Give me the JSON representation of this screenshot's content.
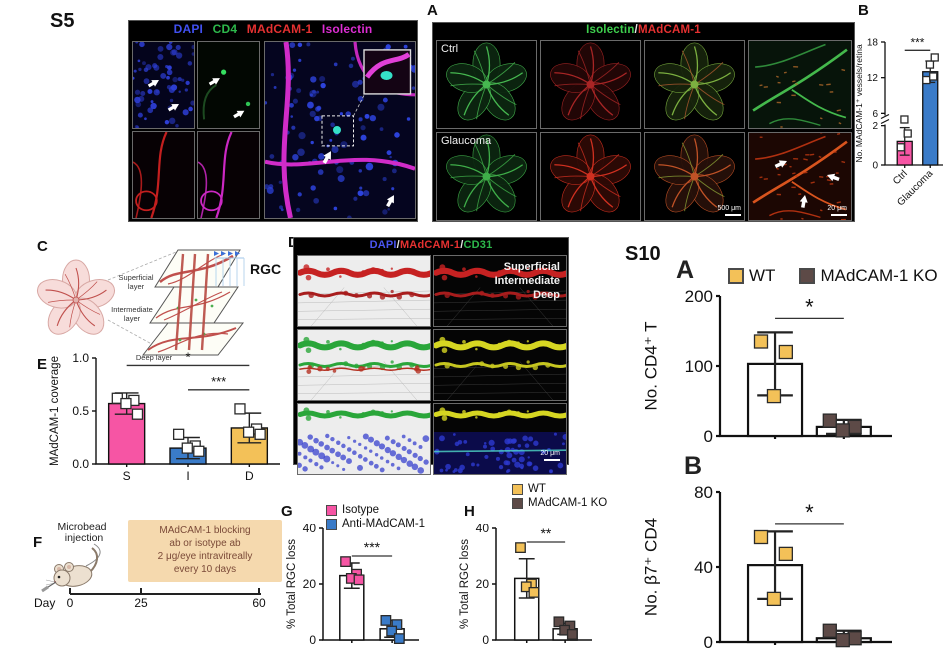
{
  "figure": {
    "s5": {
      "label": "S5",
      "channels": [
        {
          "name": "DAPI",
          "color": "#4150f0"
        },
        {
          "name": "CD4",
          "color": "#2db84b"
        },
        {
          "name": "MAdCAM-1",
          "color": "#e53131"
        },
        {
          "name": "Isolectin",
          "color": "#de2ed4"
        }
      ]
    },
    "a": {
      "label": "A",
      "header": [
        {
          "text": "Isolectin",
          "color": "#3ecf4d"
        },
        {
          "text": "/",
          "color": "#e8e8e8"
        },
        {
          "text": "MAdCAM-1",
          "color": "#e53131"
        }
      ],
      "row1": "Ctrl",
      "row2": "Glaucoma",
      "scale_500": "500 μm",
      "scale_20": "20 μm"
    },
    "b_label": "B",
    "c": {
      "label": "C",
      "rgc": "RGC",
      "layers": [
        {
          "l1": "Superficial",
          "l2": "layer"
        },
        {
          "l1": "Intermediate",
          "l2": "layer"
        },
        {
          "l1": "Deep layer",
          "l2": ""
        }
      ]
    },
    "d": {
      "label": "D",
      "header": [
        {
          "text": "DAPI",
          "color": "#4a55f0"
        },
        {
          "text": "/",
          "color": "#e8e8e8"
        },
        {
          "text": "MAdCAM-1",
          "color": "#e53131"
        },
        {
          "text": "/",
          "color": "#e8e8e8"
        },
        {
          "text": "CD31",
          "color": "#2db84b"
        }
      ],
      "depths": [
        "Superficial",
        "Intermediate",
        "Deep"
      ],
      "scale": "20 μm"
    },
    "e_label": "E",
    "f": {
      "label": "F",
      "inj1": "Microbead",
      "inj2": "injection",
      "box_lines": [
        "MAdCAM-1 blocking",
        "ab or isotype ab",
        "2 μg/eye intravitreally",
        "every 10 days"
      ],
      "day": "Day",
      "t0": "0",
      "t1": "25",
      "t2": "60"
    },
    "g_label": "G",
    "h_label": "H",
    "s10": {
      "label": "S10",
      "a_label": "A",
      "b_label": "B"
    }
  },
  "chart_data": [
    {
      "id": "b",
      "type": "bar",
      "ylabel": "No. MAdCAM-1⁺ vessels/retina",
      "ylim": [
        0,
        18
      ],
      "yticks": [
        0,
        2,
        6,
        12,
        18
      ],
      "axis_break": {
        "low": 2,
        "high": 6,
        "low_frac": 0.32,
        "gap_frac": 0.1
      },
      "categories": [
        "Ctrl",
        "Glaucoma"
      ],
      "values": [
        1.2,
        13
      ],
      "errors": [
        0.7,
        1.8
      ],
      "bar_colors": [
        "#f655a4",
        "#3a7bc8"
      ],
      "points": [
        [
          0.9,
          1.6,
          2.3
        ],
        [
          11.6,
          12.2,
          14.2,
          15.4
        ]
      ],
      "sig": [
        {
          "a": 0,
          "b": 1,
          "label": "***",
          "y": 16.6
        }
      ]
    },
    {
      "id": "e",
      "type": "bar",
      "ylabel": "MAdCAM-1 coverage",
      "ylim": [
        0,
        1.0
      ],
      "yticks": [
        0.0,
        0.5,
        1.0
      ],
      "categories": [
        "S",
        "I",
        "D"
      ],
      "values": [
        0.57,
        0.15,
        0.34
      ],
      "errors": [
        0.1,
        0.1,
        0.14
      ],
      "bar_colors": [
        "#f655a4",
        "#3a7bc8",
        "#f3c158"
      ],
      "points": [
        [
          0.62,
          0.6,
          0.57,
          0.47
        ],
        [
          0.28,
          0.17,
          0.15,
          0.12
        ],
        [
          0.52,
          0.33,
          0.3,
          0.28
        ]
      ],
      "sig": [
        {
          "a": 0,
          "b": 2,
          "label": "*",
          "y": 0.93
        },
        {
          "a": 1,
          "b": 2,
          "label": "***",
          "y": 0.7
        }
      ]
    },
    {
      "id": "g",
      "type": "bar",
      "ylabel": "% Total RGC loss",
      "ylim": [
        0,
        40
      ],
      "yticks": [
        0,
        20,
        40
      ],
      "legend": [
        {
          "label": "Isotype",
          "color": "#f655a4"
        },
        {
          "label": "Anti-MAdCAM-1",
          "color": "#3a7bc8"
        }
      ],
      "values": [
        23,
        4
      ],
      "errors": [
        4.5,
        3
      ],
      "bar_colors": [
        "#ffffff",
        "#ffffff"
      ],
      "point_fill": [
        "#f655a4",
        "#3a7bc8"
      ],
      "points": [
        [
          28,
          23.5,
          22,
          21.5
        ],
        [
          7,
          5.5,
          3.2,
          0.5
        ]
      ],
      "sig": [
        {
          "a": 0,
          "b": 1,
          "label": "***",
          "y": 30
        }
      ]
    },
    {
      "id": "h",
      "type": "bar",
      "ylabel": "% Total RGC loss",
      "ylim": [
        0,
        40
      ],
      "yticks": [
        0,
        20,
        40
      ],
      "legend": [
        {
          "label": "WT",
          "color": "#f3c158"
        },
        {
          "label": "MAdCAM-1 KO",
          "color": "#5d4a47"
        }
      ],
      "values": [
        22,
        4
      ],
      "errors": [
        7,
        2
      ],
      "bar_colors": [
        "#ffffff",
        "#ffffff"
      ],
      "point_fill": [
        "#f3c158",
        "#5d4a47"
      ],
      "points": [
        [
          33,
          20,
          19,
          17
        ],
        [
          6.5,
          5,
          3.5,
          2
        ]
      ],
      "sig": [
        {
          "a": 0,
          "b": 1,
          "label": "**",
          "y": 35
        }
      ]
    },
    {
      "id": "s10a",
      "type": "bar",
      "ylabel": "No. CD4⁺ T",
      "ylim": [
        0,
        200
      ],
      "yticks": [
        0,
        100,
        200
      ],
      "legend": [
        {
          "label": "WT",
          "color": "#f3c158"
        },
        {
          "label": "MAdCAM-1 KO",
          "color": "#5d4a47"
        }
      ],
      "values": [
        103,
        13
      ],
      "errors": [
        45,
        10
      ],
      "bar_colors": [
        "#ffffff",
        "#ffffff"
      ],
      "point_fill": [
        "#f3c158",
        "#5d4a47"
      ],
      "points": [
        [
          135,
          120,
          57
        ],
        [
          22,
          13,
          8
        ]
      ],
      "sig": [
        {
          "a": 0,
          "b": 1,
          "label": "*",
          "y": 168
        }
      ]
    },
    {
      "id": "s10b",
      "type": "bar",
      "ylabel": "No. β7⁺ CD4",
      "ylim": [
        0,
        80
      ],
      "yticks": [
        0,
        40,
        80
      ],
      "values": [
        41,
        2
      ],
      "errors": [
        18,
        4
      ],
      "bar_colors": [
        "#ffffff",
        "#ffffff"
      ],
      "point_fill": [
        "#f3c158",
        "#5d4a47"
      ],
      "points": [
        [
          56,
          47,
          23
        ],
        [
          6,
          2,
          1
        ]
      ],
      "sig": [
        {
          "a": 0,
          "b": 1,
          "label": "*",
          "y": 63
        }
      ]
    }
  ]
}
